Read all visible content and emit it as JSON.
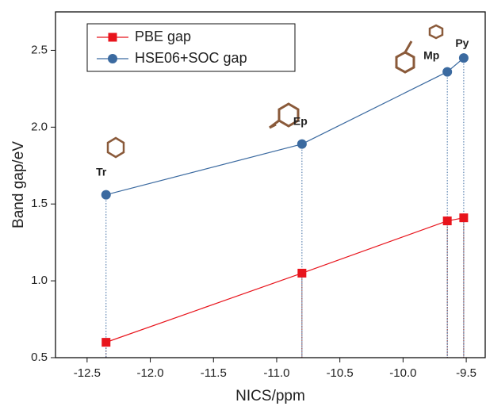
{
  "chart_data": {
    "type": "line",
    "x_label": "NICS/ppm",
    "y_label": "Band gap/eV",
    "series": [
      {
        "name": "PBE gap",
        "color": "#e8141c",
        "marker": "square",
        "x": [
          -12.35,
          -10.8,
          -9.65,
          -9.52
        ],
        "values": [
          0.6,
          1.05,
          1.39,
          1.41
        ]
      },
      {
        "name": "HSE06+SOC gap",
        "color": "#3b6aa0",
        "marker": "circle",
        "x": [
          -12.35,
          -10.8,
          -9.65,
          -9.52
        ],
        "values": [
          1.56,
          1.89,
          2.36,
          2.45
        ]
      }
    ],
    "annotations": [
      "Tr",
      "Ep",
      "Mp",
      "Py"
    ],
    "xlim": [
      -12.75,
      -9.35
    ],
    "xticks": [
      {
        "value": -12.5,
        "label": "-12.5"
      },
      {
        "value": -12.0,
        "label": "-12.0"
      },
      {
        "value": -11.5,
        "label": "-11.5"
      },
      {
        "value": -11.0,
        "label": "-11.0"
      },
      {
        "value": -10.5,
        "label": "-10.5"
      },
      {
        "value": -10.0,
        "label": "-10.0"
      },
      {
        "value": -9.5,
        "label": "-9.5"
      }
    ],
    "ylim": [
      0.5,
      2.75
    ],
    "yticks": [
      0.5,
      {
        "value": 1.0,
        "label": "1.0"
      },
      1.5,
      {
        "value": 2.0,
        "label": "2.0"
      },
      2.5
    ],
    "legend": "top-left",
    "grid": false
  }
}
